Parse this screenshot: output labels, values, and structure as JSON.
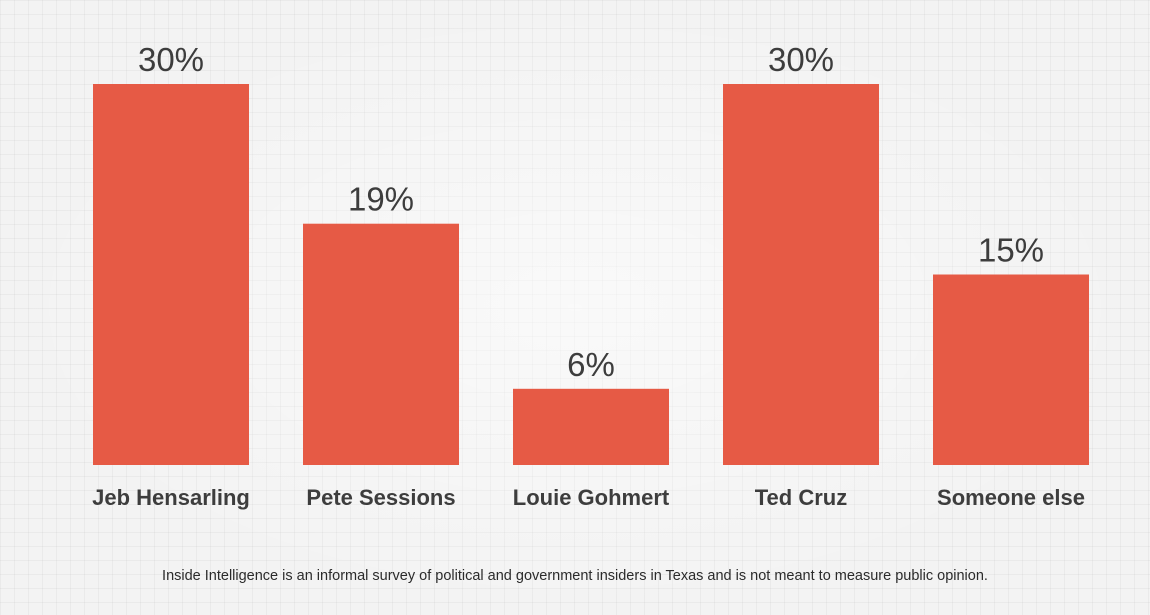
{
  "chart_data": {
    "type": "bar",
    "categories": [
      "Jeb Hensarling",
      "Pete Sessions",
      "Louie Gohmert",
      "Ted Cruz",
      "Someone else"
    ],
    "values": [
      30,
      19,
      6,
      30,
      15
    ],
    "value_labels": [
      "30%",
      "19%",
      "6%",
      "30%",
      "15%"
    ],
    "ylim": [
      0,
      30
    ],
    "grid": false,
    "bar_color": "#e65a45"
  },
  "footnote": "Inside Intelligence is an informal survey of political and government insiders in Texas and is not meant to measure public opinion."
}
